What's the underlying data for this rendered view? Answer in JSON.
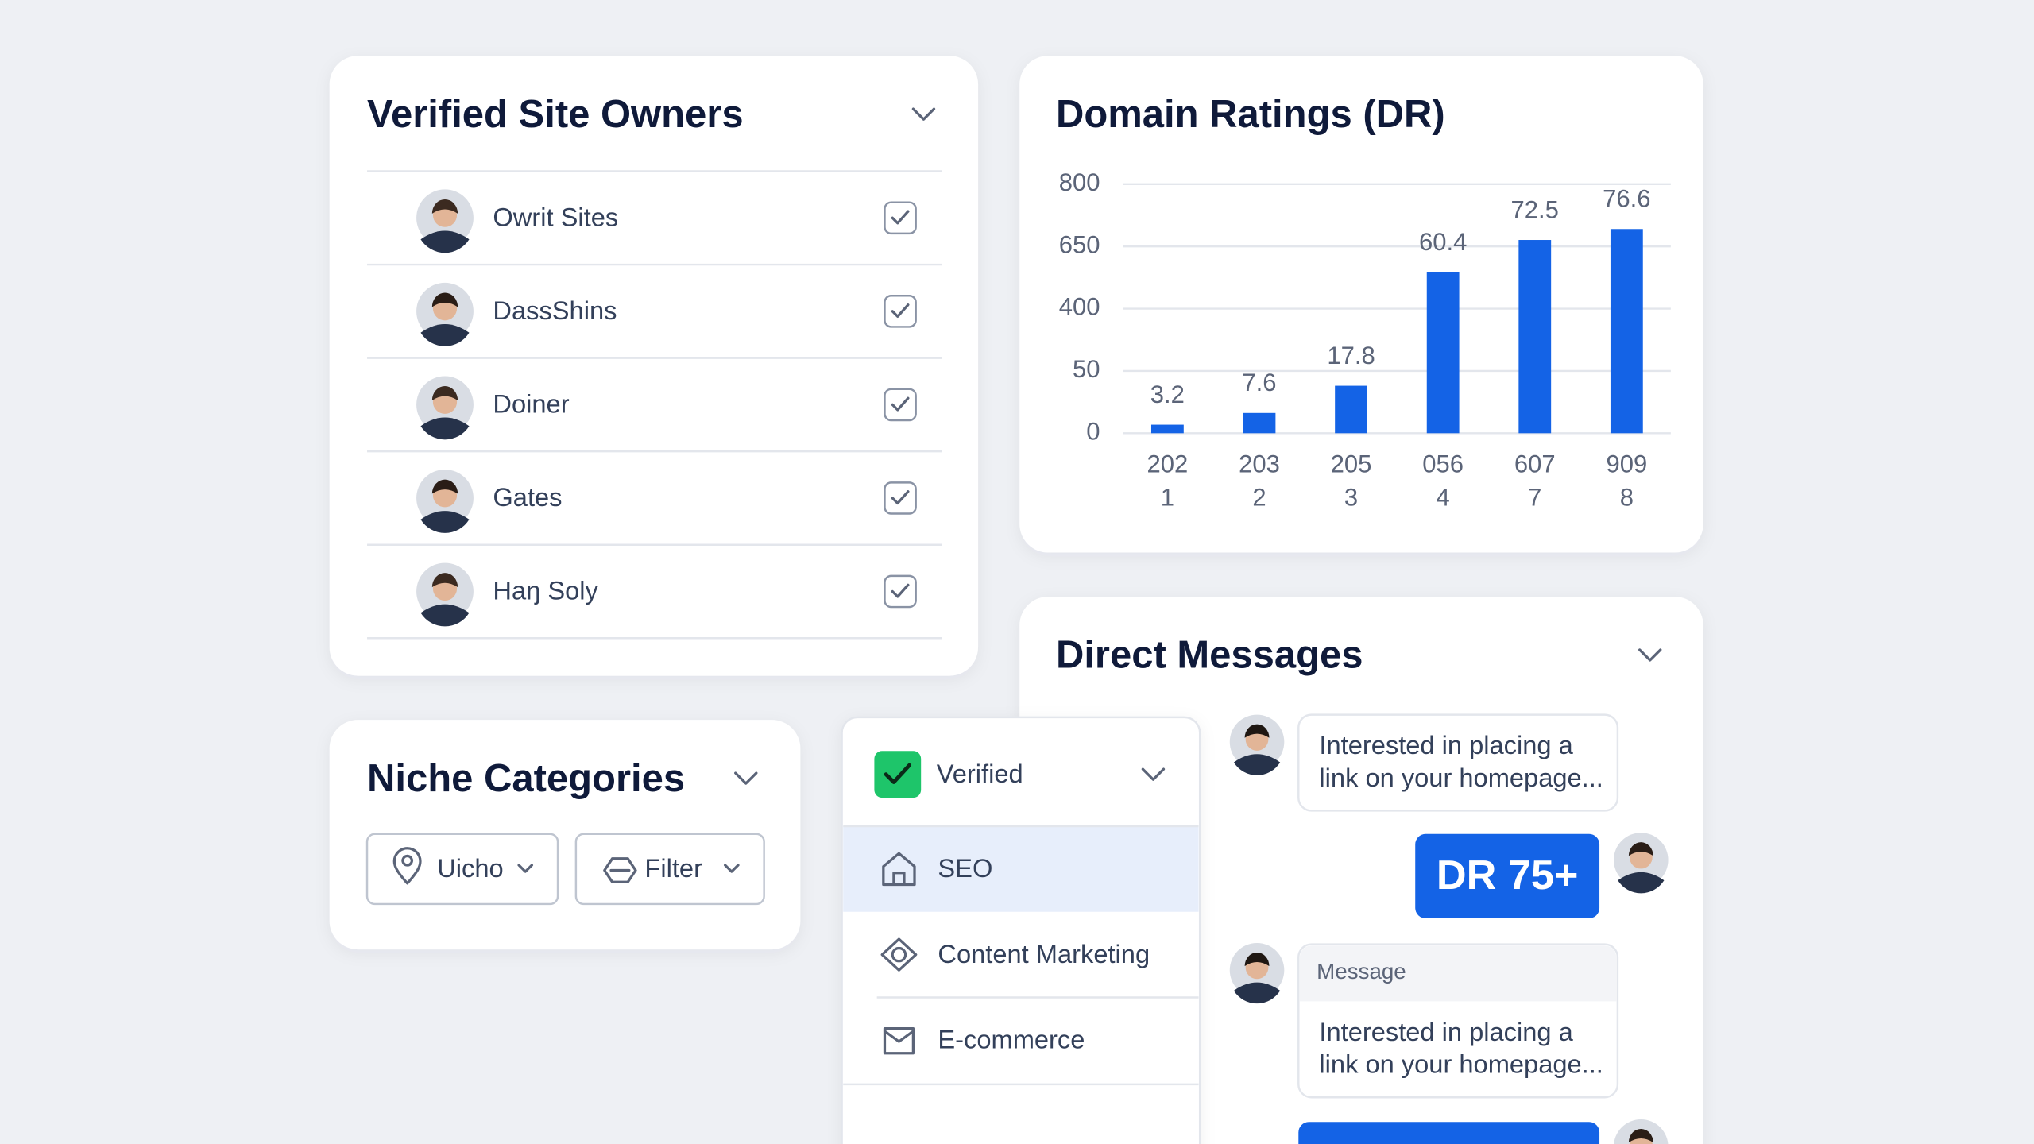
{
  "verified_site_owners": {
    "title": "Verified Site Owners",
    "owners": [
      "Owrit Sites",
      "DassShins",
      "Doiner",
      "Gates",
      "Haŋ Soly"
    ]
  },
  "chart_data": {
    "type": "bar",
    "title": "Domain Ratings (DR)",
    "categories": [
      [
        "202",
        "1"
      ],
      [
        "203",
        "2"
      ],
      [
        "205",
        "3"
      ],
      [
        "056",
        "4"
      ],
      [
        "607",
        "7"
      ],
      [
        "909",
        "8"
      ]
    ],
    "values": [
      3.2,
      7.6,
      17.8,
      60.4,
      72.5,
      76.6
    ],
    "color": "#1463e6",
    "yticks": [
      800,
      650,
      400,
      50,
      0
    ],
    "grid": true
  },
  "niche_categories": {
    "title": "Niche Categories",
    "buttons": [
      "Uicho",
      "Filter"
    ]
  },
  "category_menu": {
    "selected": "Verified",
    "items": [
      "SEO",
      "Content Marketing",
      "E-commerce"
    ]
  },
  "direct_messages": {
    "title": "Direct Messages",
    "message_1": [
      "Interested in placing a",
      "link on your homepage..."
    ],
    "badge": "DR 75+",
    "message_2_header": "Message",
    "message_2": [
      "Interested in placing a",
      "link on your homepage..."
    ]
  }
}
